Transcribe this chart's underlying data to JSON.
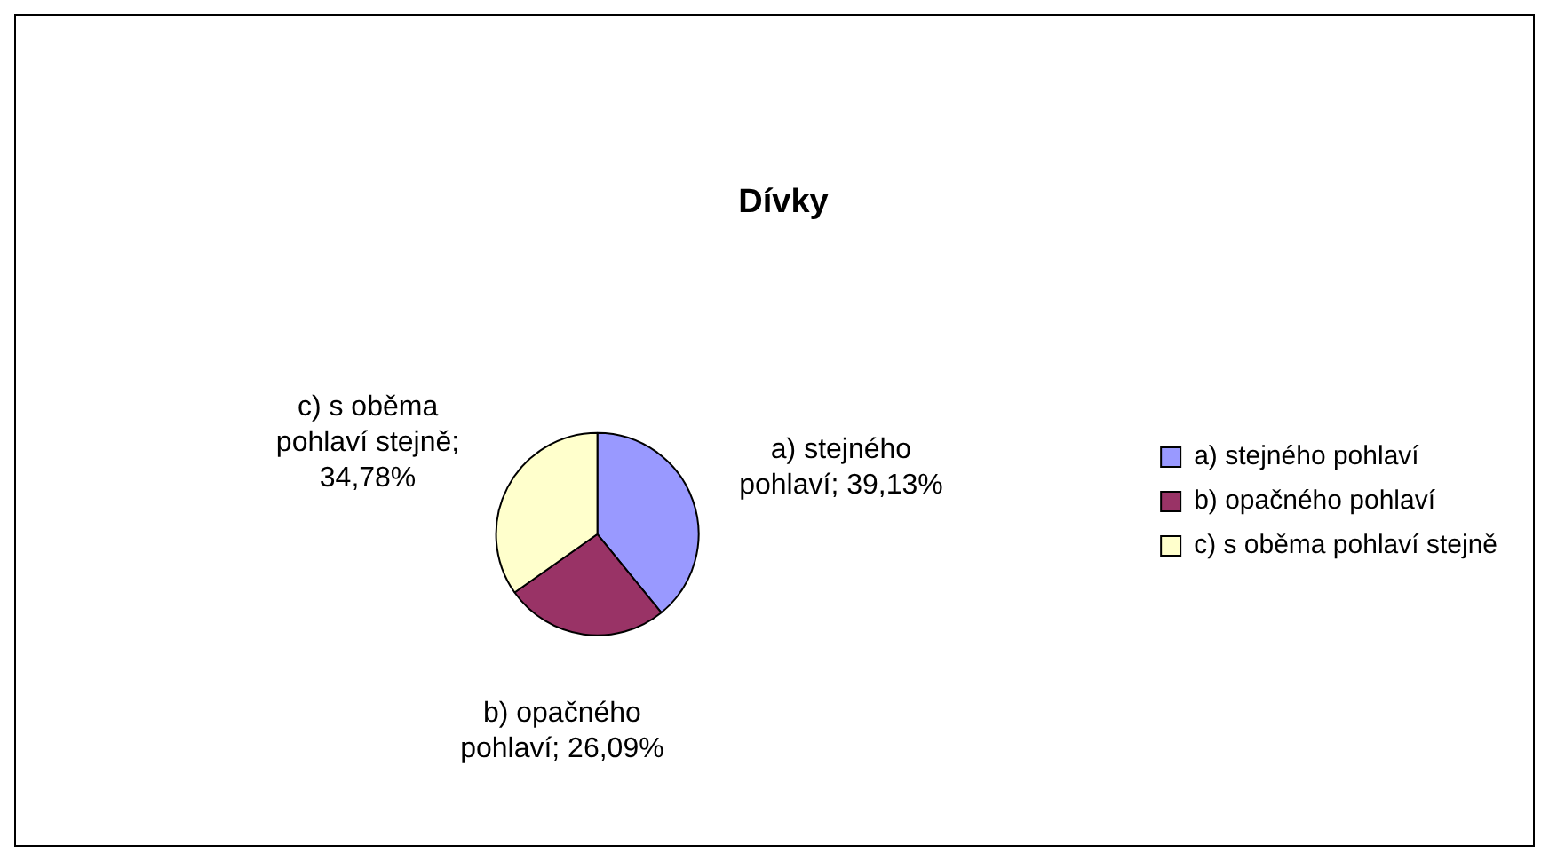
{
  "chart_data": {
    "type": "pie",
    "title": "Dívky",
    "categories": [
      "a) stejného pohlaví",
      "b) opačného pohlaví",
      "c) s oběma pohlaví stejně"
    ],
    "values": [
      39.13,
      26.09,
      34.78
    ],
    "value_labels": [
      "a) stejného pohlaví; 39,13%",
      "b) opačného pohlaví; 26,09%",
      "c) s oběma pohlaví stejně; 34,78%"
    ],
    "colors": [
      "#9999ff",
      "#993366",
      "#ffffcc"
    ],
    "legend": "right"
  }
}
